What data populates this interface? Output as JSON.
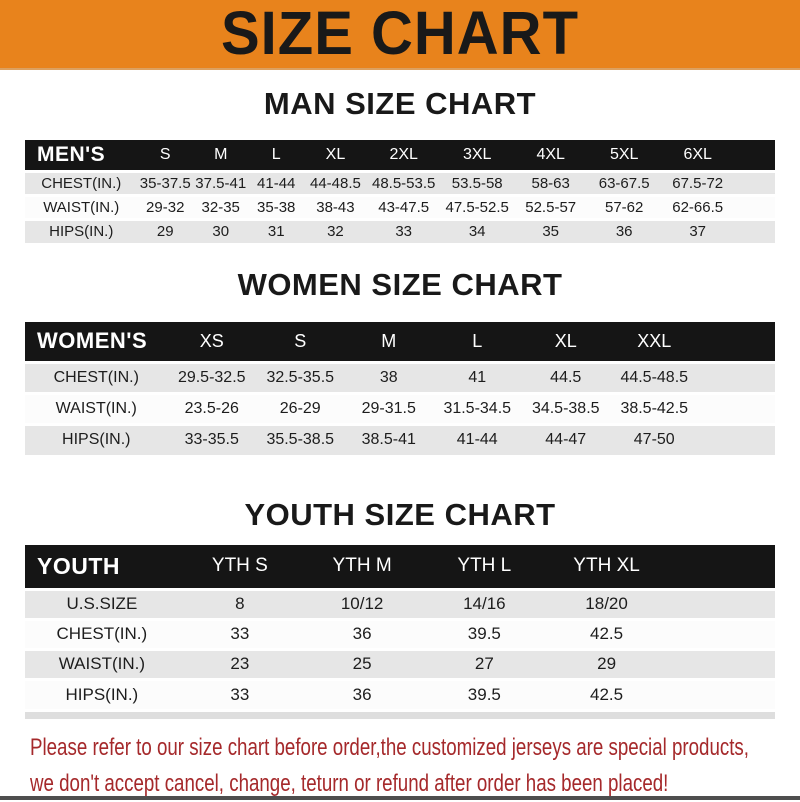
{
  "banner": {
    "title": "SIZE CHART"
  },
  "colors": {
    "banner_orange": "#E8831C",
    "header_bar_black": "#151515",
    "row_gray": "#E6E6E6",
    "row_white": "#FCFCFC",
    "footer_red": "#A5292B",
    "title_black": "#191919"
  },
  "tables": [
    {
      "id": "men",
      "title": "MAN SIZE CHART",
      "header_label": "MEN'S",
      "columns": [
        "S",
        "M",
        "L",
        "XL",
        "2XL",
        "3XL",
        "4XL",
        "5XL",
        "6XL"
      ],
      "rows": [
        {
          "label": "CHEST(IN.)",
          "values": [
            "35-37.5",
            "37.5-41",
            "41-44",
            "44-48.5",
            "48.5-53.5",
            "53.5-58",
            "58-63",
            "63-67.5",
            "67.5-72"
          ]
        },
        {
          "label": "WAIST(IN.)",
          "values": [
            "29-32",
            "32-35",
            "35-38",
            "38-43",
            "43-47.5",
            "47.5-52.5",
            "52.5-57",
            "57-62",
            "62-66.5"
          ]
        },
        {
          "label": "HIPS(IN.)",
          "values": [
            "29",
            "30",
            "31",
            "32",
            "33",
            "34",
            "35",
            "36",
            "37"
          ]
        }
      ]
    },
    {
      "id": "women",
      "title": "WOMEN SIZE CHART",
      "header_label": "WOMEN'S",
      "columns": [
        "XS",
        "S",
        "M",
        "L",
        "XL",
        "XXL"
      ],
      "rows": [
        {
          "label": "CHEST(IN.)",
          "values": [
            "29.5-32.5",
            "32.5-35.5",
            "38",
            "41",
            "44.5",
            "44.5-48.5"
          ]
        },
        {
          "label": "WAIST(IN.)",
          "values": [
            "23.5-26",
            "26-29",
            "29-31.5",
            "31.5-34.5",
            "34.5-38.5",
            "38.5-42.5"
          ]
        },
        {
          "label": "HIPS(IN.)",
          "values": [
            "33-35.5",
            "35.5-38.5",
            "38.5-41",
            "41-44",
            "44-47",
            "47-50"
          ]
        }
      ]
    },
    {
      "id": "youth",
      "title": "YOUTH SIZE CHART",
      "header_label": "YOUTH",
      "columns": [
        "YTH S",
        "YTH M",
        "YTH L",
        "YTH XL"
      ],
      "rows": [
        {
          "label": "U.S.SIZE",
          "values": [
            "8",
            "10/12",
            "14/16",
            "18/20"
          ]
        },
        {
          "label": "CHEST(IN.)",
          "values": [
            "33",
            "36",
            "39.5",
            "42.5"
          ]
        },
        {
          "label": "WAIST(IN.)",
          "values": [
            "23",
            "25",
            "27",
            "29"
          ]
        },
        {
          "label": "HIPS(IN.)",
          "values": [
            "33",
            "36",
            "39.5",
            "42.5"
          ]
        }
      ]
    }
  ],
  "footer": {
    "line1": "Please refer to our size chart before order,the customized jerseys are special products,",
    "line2": "we don't accept cancel, change, teturn or refund after order has been placed!"
  }
}
